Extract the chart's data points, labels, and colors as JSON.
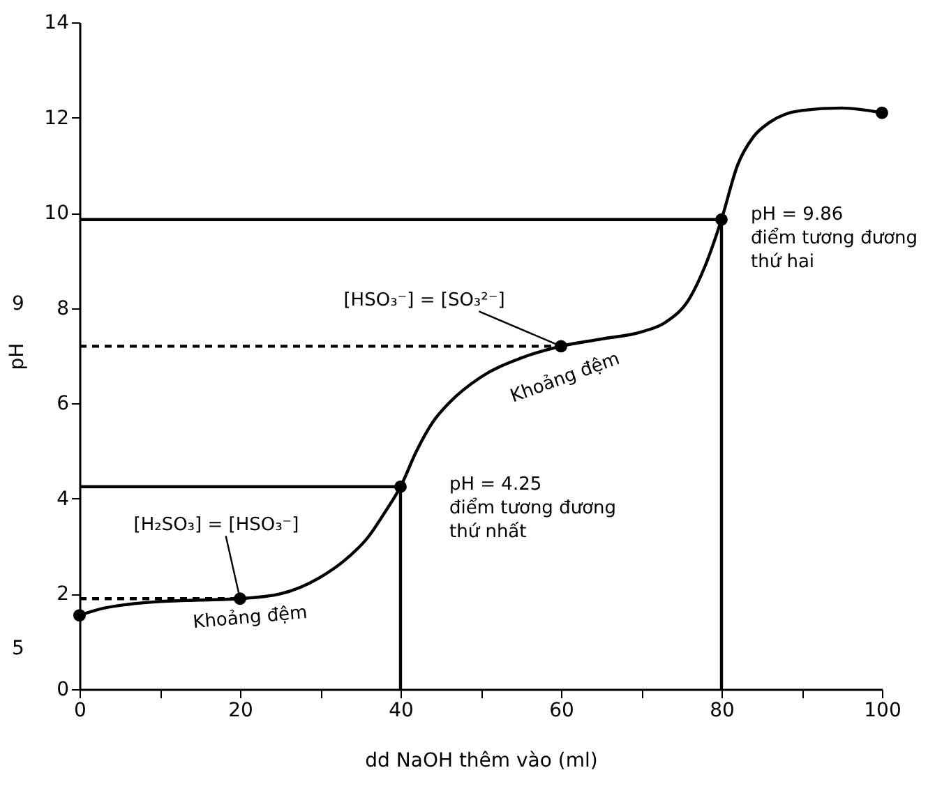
{
  "chart_data": {
    "type": "line",
    "xlabel": "dd NaOH thêm vào (ml)",
    "ylabel": "pH",
    "xlim": [
      0,
      100
    ],
    "ylim": [
      0,
      14
    ],
    "xticks": [
      0,
      {
        "value": 10,
        "label": null
      },
      20,
      {
        "value": 30,
        "label": null
      },
      40,
      {
        "value": 50,
        "label": null
      },
      60,
      {
        "value": 70,
        "label": null
      },
      80,
      {
        "value": 90,
        "label": null
      },
      100
    ],
    "yticks": [
      0,
      2,
      4,
      6,
      8,
      10,
      12,
      14
    ],
    "grid": false,
    "series": [
      {
        "color": "#000000",
        "x": [
          0,
          3,
          6,
          10,
          15,
          20,
          25,
          30,
          33,
          36,
          38,
          40,
          42,
          44,
          46,
          50,
          55,
          60,
          65,
          70,
          73,
          76,
          78,
          80,
          82,
          84,
          86,
          90,
          95,
          100
        ],
        "values": [
          1.55,
          1.7,
          1.78,
          1.84,
          1.87,
          1.9,
          2.0,
          2.35,
          2.7,
          3.2,
          3.7,
          4.25,
          5.0,
          5.6,
          6.0,
          6.55,
          6.95,
          7.2,
          7.35,
          7.5,
          7.7,
          8.2,
          8.9,
          9.86,
          11.0,
          11.6,
          11.9,
          12.15,
          12.2,
          12.1
        ]
      },
      {
        "type": "scatter",
        "marker": "circle",
        "color": "#000000",
        "x": [
          0,
          20,
          40,
          60,
          80,
          100
        ],
        "values": [
          1.55,
          1.9,
          4.25,
          7.2,
          9.86,
          12.1
        ]
      },
      {
        "color": "#000000",
        "x": [
          0,
          40,
          40
        ],
        "values": [
          4.25,
          4.25,
          0
        ]
      },
      {
        "color": "#000000",
        "x": [
          0,
          80,
          80
        ],
        "values": [
          9.86,
          9.86,
          0
        ]
      },
      {
        "color": "#000000",
        "line_style": "dashed",
        "x": [
          0,
          20
        ],
        "values": [
          1.9,
          1.9
        ]
      },
      {
        "color": "#000000",
        "line_style": "dashed",
        "x": [
          0,
          60
        ],
        "values": [
          7.2,
          7.2
        ]
      }
    ],
    "annotations": [
      {
        "text": "[H₂SO₃] = [HSO₃⁻]",
        "x": 20,
        "y": 1.9
      },
      {
        "text": "Khoảng đệm",
        "x": 20,
        "y": 1.9
      },
      {
        "text": "[HSO₃⁻] = [SO₃²⁻]",
        "x": 60,
        "y": 7.2
      },
      {
        "text": "Khoảng đệm",
        "x": 60,
        "y": 7.2
      },
      {
        "text": "pH = 4.25\nđiểm tương đương\nthứ nhất",
        "x": 40,
        "y": 4.25
      },
      {
        "text": "pH = 9.86\nđiểm tương đương\nthứ hai",
        "x": 80,
        "y": 9.86
      },
      "9",
      "5"
    ]
  }
}
